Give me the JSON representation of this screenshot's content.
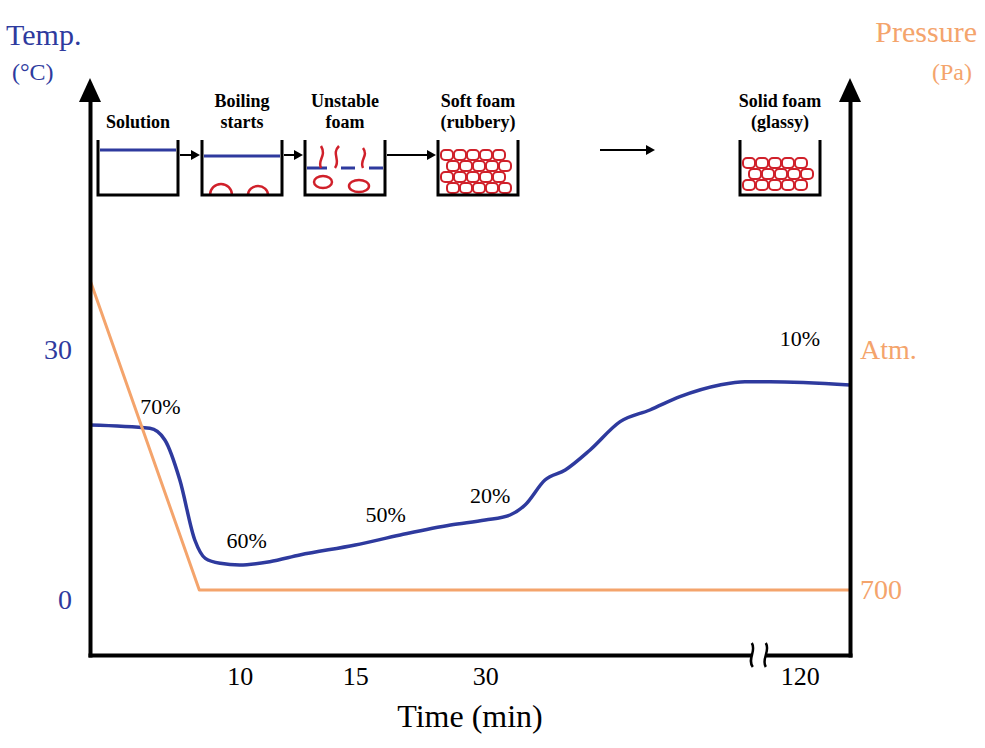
{
  "chart_data": {
    "type": "line",
    "x_label": "Time (min)",
    "y_label": [
      "Temp.",
      "(°C)"
    ],
    "y2_label": [
      "Pressure",
      "(Pa)"
    ],
    "xlim": [
      0,
      130
    ],
    "xticks": [
      10,
      15,
      30,
      120
    ],
    "ylim": [
      -6.6,
      60
    ],
    "yticks": [
      0,
      30
    ],
    "y2lim": [
      -26550,
      206140
    ],
    "y2ticks": [
      {
        "value": 101325,
        "label": "Atm."
      },
      700
    ],
    "series": [
      {
        "color": "#2e3a9e",
        "x": [
          0,
          4,
          5,
          6,
          7,
          7.7,
          8.7,
          10,
          11.3,
          12.6,
          15,
          20.2,
          26,
          30,
          37.1,
          41.4,
          47.1,
          52.9,
          60,
          68.6,
          77.1,
          85.7,
          97.1,
          104.3,
          111.4,
          130
        ],
        "values": [
          21,
          20.6,
          19.2,
          14.4,
          7.2,
          5.0,
          4.4,
          4.2,
          4.6,
          5.4,
          6.6,
          7.8,
          9.0,
          9.6,
          10.2,
          11.4,
          14.4,
          15.6,
          18,
          21.4,
          22.8,
          24.4,
          25.8,
          26.2,
          26.2,
          25.8
        ]
      },
      {
        "color": "#f4a46c",
        "axis": "y2",
        "x": [
          0,
          7.3,
          130
        ],
        "values": [
          130700,
          700,
          700
        ]
      }
    ],
    "annotations": [
      {
        "text": "70%",
        "x": 4.7,
        "y": 22.3
      },
      {
        "text": "60%",
        "x": 10.3,
        "y": 6.2
      },
      {
        "text": "50%",
        "x": 18.5,
        "y": 9.4
      },
      {
        "text": "20%",
        "x": 31.4,
        "y": 11.6
      },
      {
        "text": "10%",
        "x": 120,
        "y": 30.5
      }
    ],
    "stages": [
      [
        "Solution"
      ],
      [
        "Boiling",
        "starts"
      ],
      [
        "Unstable",
        "foam"
      ],
      [
        "Soft foam",
        "(rubbery)"
      ],
      [
        "Solid foam",
        "(glassy)"
      ]
    ]
  }
}
